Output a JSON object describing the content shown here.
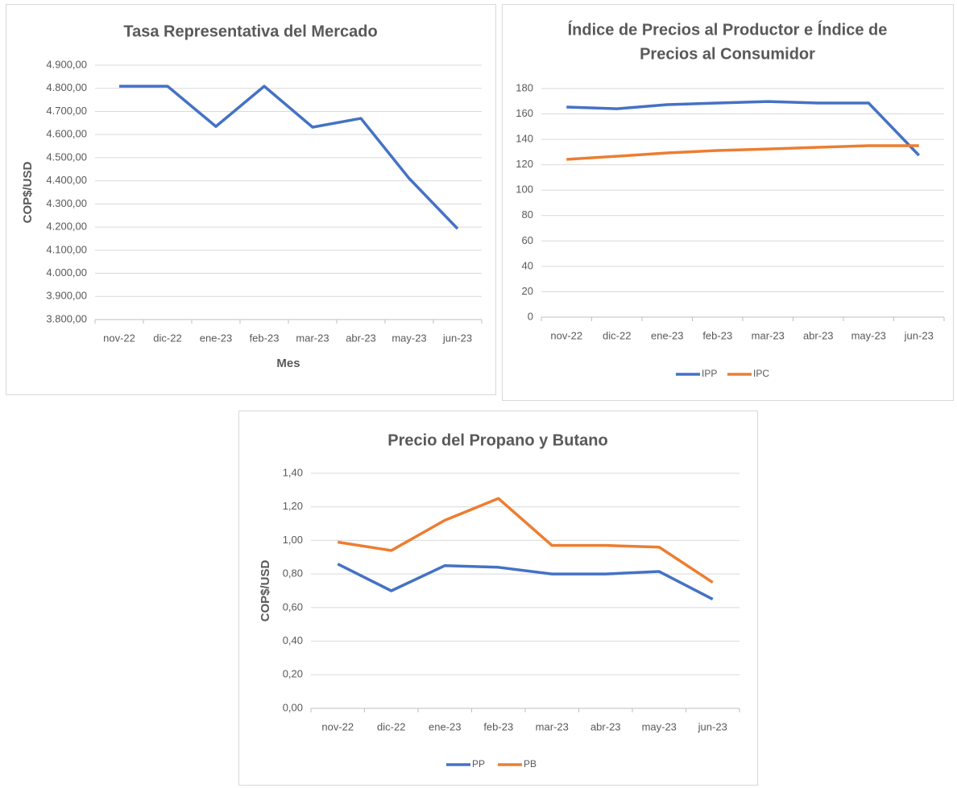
{
  "chart_data": [
    {
      "type": "line",
      "title": "Tasa Representativa del Mercado",
      "x_label": "Mes",
      "y_label": "COP$/USD",
      "categories": [
        "nov-22",
        "dic-22",
        "ene-23",
        "feb-23",
        "mar-23",
        "abr-23",
        "may-23",
        "jun-23"
      ],
      "values": [
        4809,
        4809,
        4635,
        4809,
        4632,
        4670,
        4410,
        4193
      ],
      "color": "#4472c4",
      "ylim": [
        3800,
        4900
      ],
      "yticks": [
        {
          "value": 3800,
          "label": "3.800,00"
        },
        {
          "value": 3900,
          "label": "3.900,00"
        },
        {
          "value": 4000,
          "label": "4.000,00"
        },
        {
          "value": 4100,
          "label": "4.100,00"
        },
        {
          "value": 4200,
          "label": "4.200,00"
        },
        {
          "value": 4300,
          "label": "4.300,00"
        },
        {
          "value": 4400,
          "label": "4.400,00"
        },
        {
          "value": 4500,
          "label": "4.500,00"
        },
        {
          "value": 4600,
          "label": "4.600,00"
        },
        {
          "value": 4700,
          "label": "4.700,00"
        },
        {
          "value": 4800,
          "label": "4.800,00"
        },
        {
          "value": 4900,
          "label": "4.900,00"
        }
      ],
      "grid": true
    },
    {
      "type": "line",
      "title_lines": [
        "Índice de Precios al Productor e Índice de",
        "Precios al Consumidor"
      ],
      "categories": [
        "nov-22",
        "dic-22",
        "ene-23",
        "feb-23",
        "mar-23",
        "abr-23",
        "may-23",
        "jun-23"
      ],
      "series": [
        {
          "name": "IPP",
          "color": "#4472c4",
          "values": [
            165.4,
            164.1,
            167.3,
            168.6,
            169.8,
            168.6,
            168.6,
            127.4
          ]
        },
        {
          "name": "IPC",
          "color": "#ed7d31",
          "values": [
            124.2,
            126.7,
            129.3,
            131.2,
            132.4,
            133.7,
            135,
            135
          ]
        }
      ],
      "ylim": [
        0,
        180
      ],
      "yticks": [
        0,
        20,
        40,
        60,
        80,
        100,
        120,
        140,
        160,
        180
      ],
      "grid": true,
      "legend": "bottom"
    },
    {
      "type": "line",
      "title": "Precio del Propano y Butano",
      "y_label": "COP$/USD",
      "categories": [
        "nov-22",
        "dic-22",
        "ene-23",
        "feb-23",
        "mar-23",
        "abr-23",
        "may-23",
        "jun-23"
      ],
      "series": [
        {
          "name": "PP",
          "color": "#4472c4",
          "values": [
            0.86,
            0.7,
            0.85,
            0.84,
            0.8,
            0.8,
            0.815,
            0.65
          ]
        },
        {
          "name": "PB",
          "color": "#ed7d31",
          "values": [
            0.99,
            0.94,
            1.12,
            1.25,
            0.97,
            0.97,
            0.96,
            0.75
          ]
        }
      ],
      "ylim": [
        0,
        1.4
      ],
      "yticks": [
        {
          "value": 0,
          "label": "0,00"
        },
        {
          "value": 0.2,
          "label": "0,20"
        },
        {
          "value": 0.4,
          "label": "0,40"
        },
        {
          "value": 0.6,
          "label": "0,60"
        },
        {
          "value": 0.8,
          "label": "0,80"
        },
        {
          "value": 1.0,
          "label": "1,00"
        },
        {
          "value": 1.2,
          "label": "1,20"
        },
        {
          "value": 1.4,
          "label": "1,40"
        }
      ],
      "grid": true,
      "legend": "bottom"
    }
  ]
}
